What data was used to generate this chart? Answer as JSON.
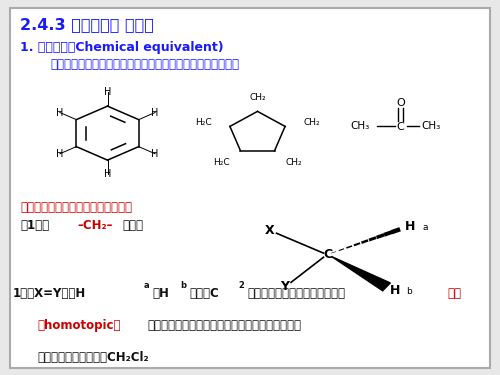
{
  "title": "2.4.3 化学等价和 磁等价",
  "line1": "1. 化学等价（Chemical equivalent)",
  "line2": "分子中的两相同原子（或两相同基团）处于相同的化学环境。",
  "line3": "化学等价的氢有等位氢和对映氢两种",
  "line4a": "（1）以",
  "line4b": "–CH₂–",
  "line4c": "为例：",
  "bot1a": "1）当X=Y时，H",
  "bot1b": "a",
  "bot1c": "和H",
  "bot1d": "b",
  "bot1e": "可通过C",
  "bot1f": "2",
  "bot1g": "旋转操作可互换，这两个氢称为",
  "bot1h": "等位",
  "bot2a": "（homotopic）",
  "bot2b": "氢，具有相同的化学位移，无论在何种溶剂中，共",
  "bot3": "振频率都相同。例如：CH₂Cl₂",
  "font_blue": "#1a1aff",
  "font_black": "#111111",
  "font_red": "#cc0000",
  "bg_color": "#e8e8e8",
  "panel_color": "#ffffff",
  "border_color": "#aaaaaa"
}
